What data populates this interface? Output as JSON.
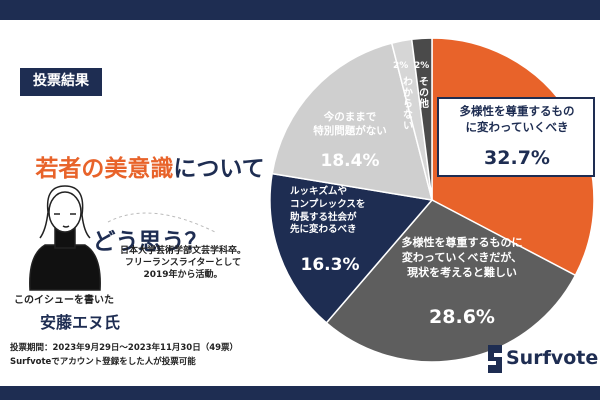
{
  "badge": "投票結果",
  "heading": {
    "title_parts": [
      "若者の美意識",
      "について",
      "どう思う？"
    ]
  },
  "author": {
    "bio": "日本大学芸術学部文芸学科卒。\nフリーランスライターとして\n2019年から活動。",
    "caption": "このイシューを書いた",
    "name": "安藤エヌ氏"
  },
  "footer": {
    "period": "投票期間：2023年9月29日〜2023年11月30日（49票）",
    "note": "Surfvoteでアカウント登録をした人が投票可能"
  },
  "brand": "Surfvote",
  "chart_data": {
    "type": "pie",
    "categories": [
      "多様性を尊重するもの\nに変わっていくべき",
      "多様性を尊重するものに\n変わっていくべきだが、\n現状を考えると難しい",
      "ルッキズムや\nコンプレックスを\n助長する社会が\n先に変わるべき",
      "今のままで\n特別問題がない",
      "わからない",
      "その他"
    ],
    "values": [
      32.7,
      28.6,
      16.3,
      18.4,
      2,
      2
    ],
    "value_labels": [
      "32.7%",
      "28.6%",
      "16.3%",
      "18.4%",
      "2%",
      "2%"
    ],
    "colors": [
      "#e8632a",
      "#5e5e5e",
      "#1e2d52",
      "#cfcfcf",
      "#d6d6d6",
      "#4a4a4a"
    ]
  }
}
